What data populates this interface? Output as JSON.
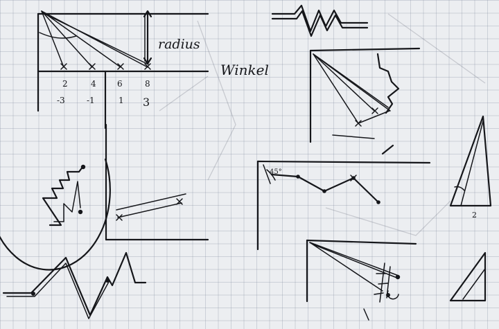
{
  "labels": {
    "radius": "radius",
    "winkel": "Winkel",
    "top_ticks": [
      "2",
      "4",
      "6",
      "8"
    ],
    "bottom_ticks": [
      "-3",
      "-1",
      "1",
      "3"
    ],
    "angle_mark": "45°",
    "triangle_base": "2"
  }
}
